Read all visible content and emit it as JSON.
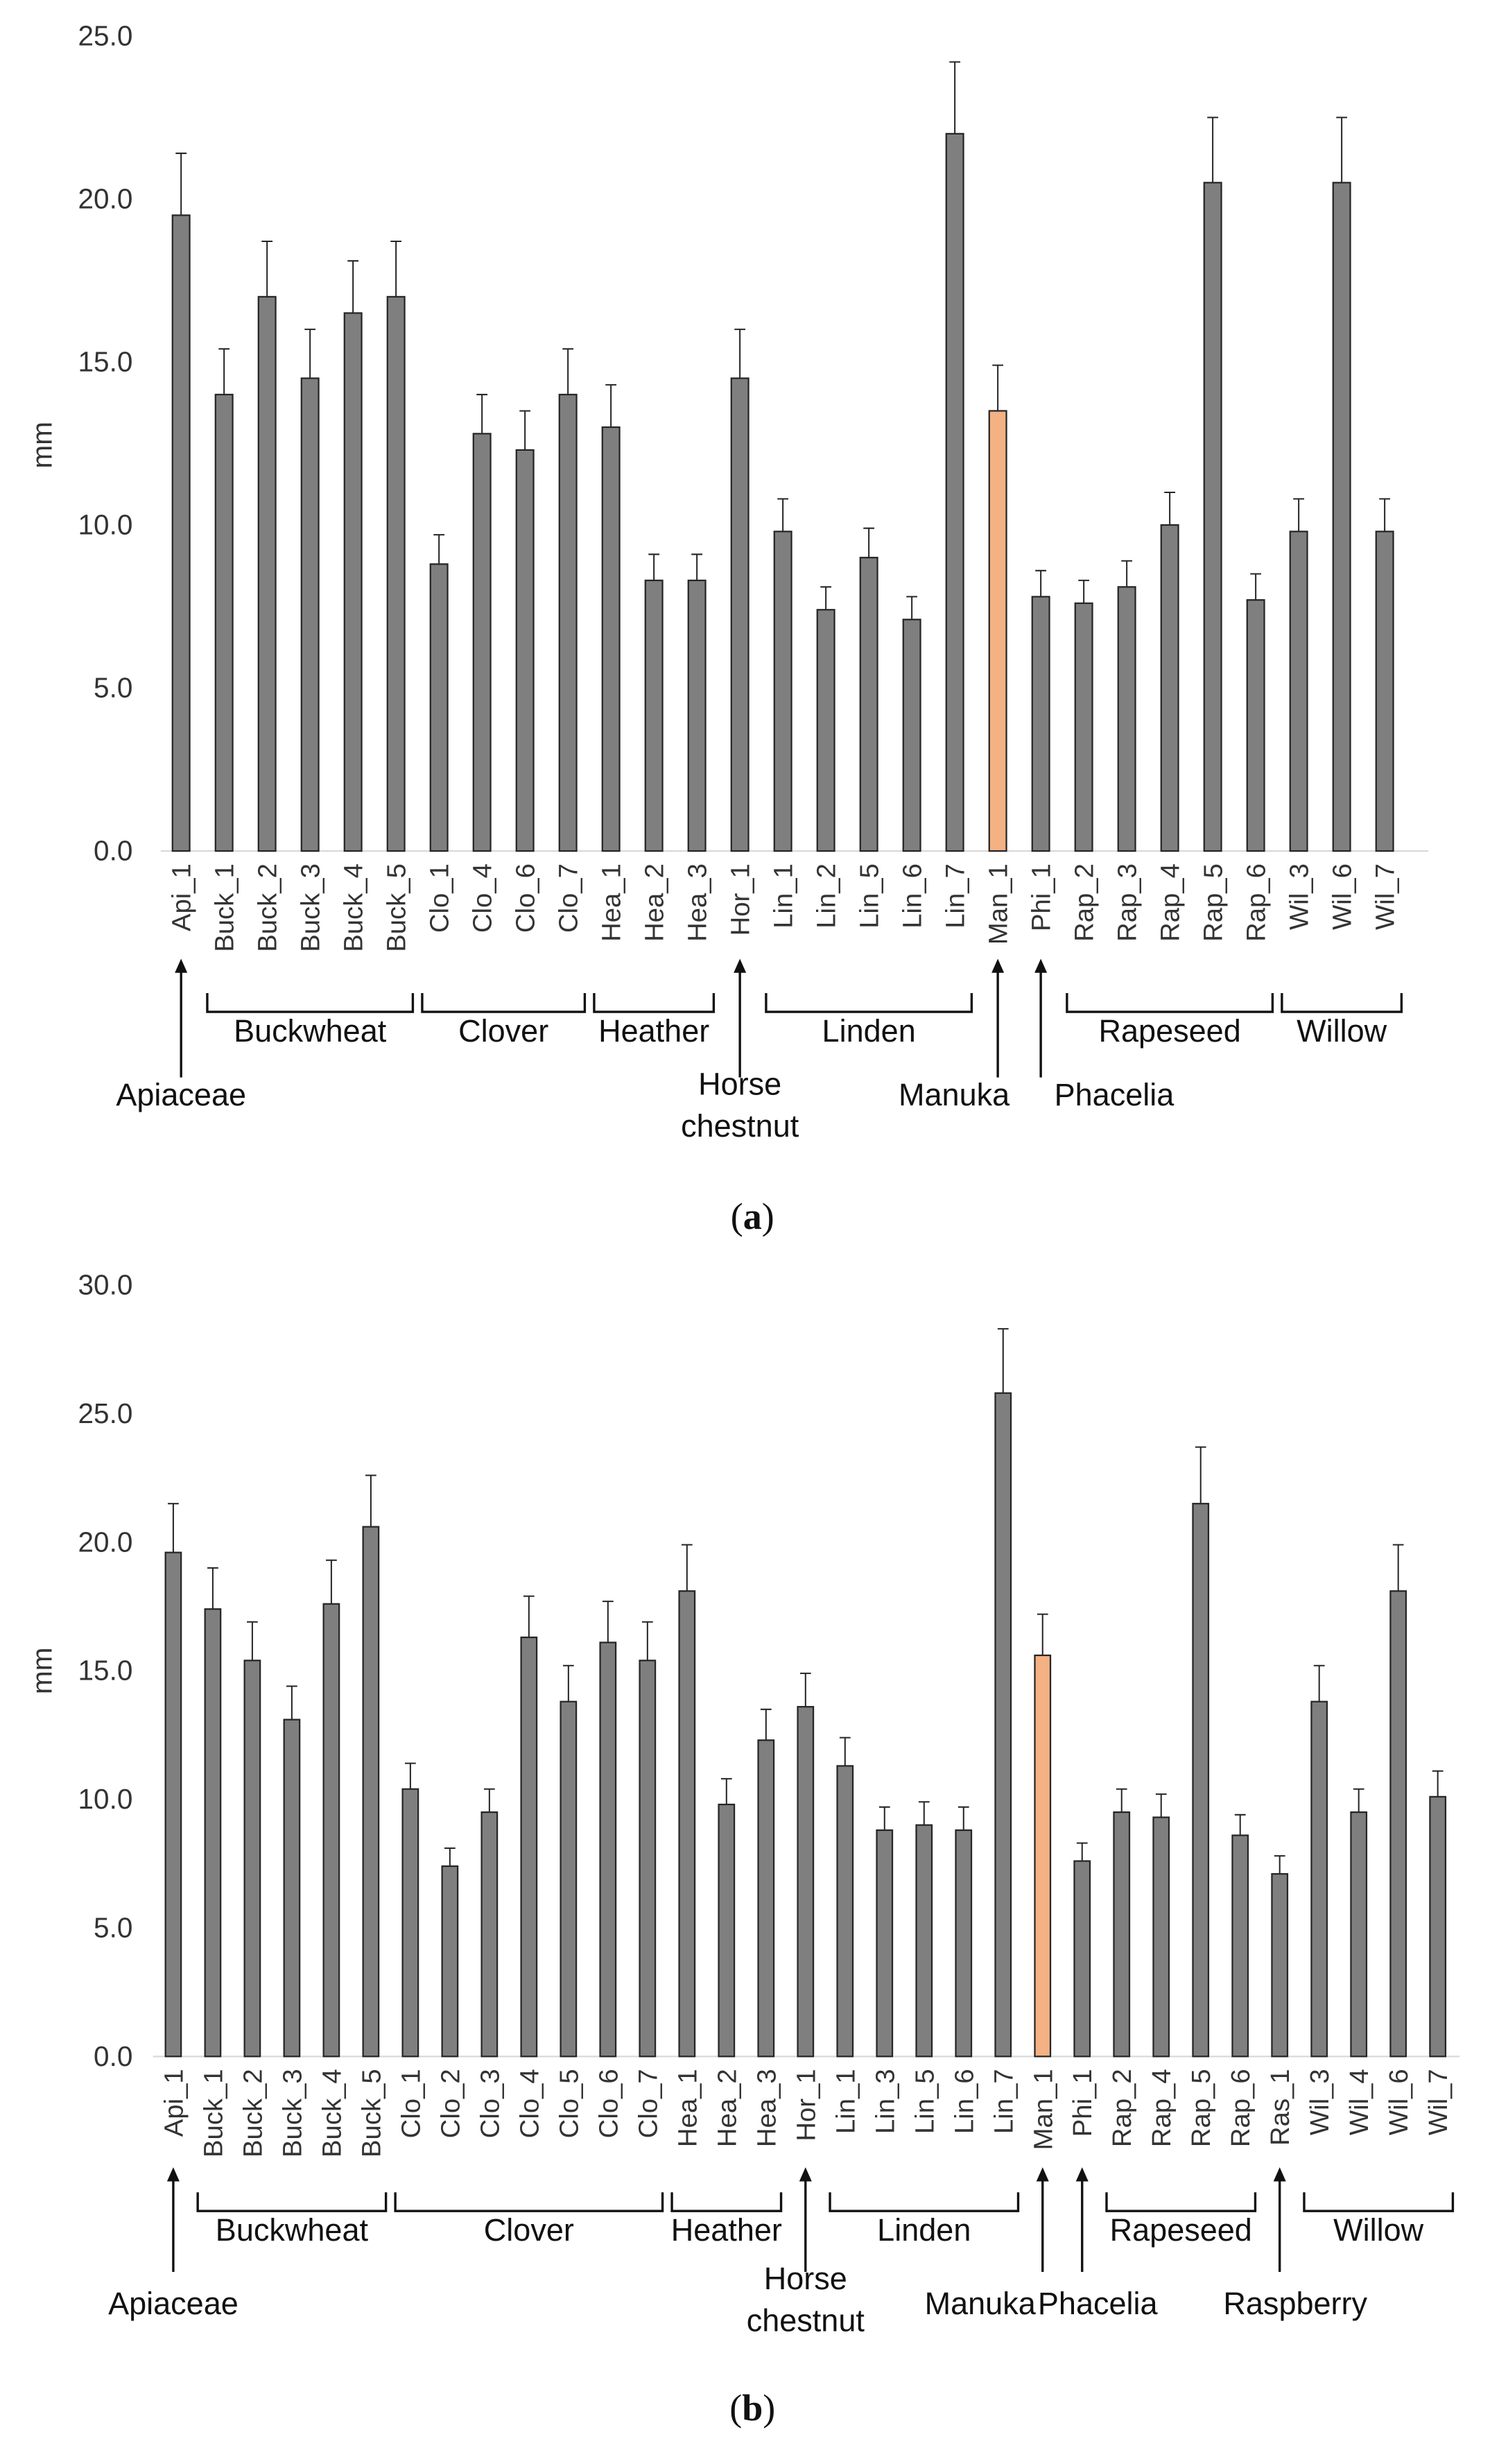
{
  "chart_data": [
    {
      "type": "bar",
      "panel": "(a)",
      "panel_letter": "a",
      "ylabel": "mm",
      "ylim": [
        0,
        25
      ],
      "yticks": [
        "0.0",
        "5.0",
        "10.0",
        "15.0",
        "20.0",
        "25.0"
      ],
      "ytick_values": [
        0,
        5,
        10,
        15,
        20,
        25
      ],
      "categories": [
        "Api_1",
        "Buck_1",
        "Buck_2",
        "Buck_3",
        "Buck_4",
        "Buck_5",
        "Clo_1",
        "Clo_4",
        "Clo_6",
        "Clo_7",
        "Hea_1",
        "Hea_2",
        "Hea_3",
        "Hor_1",
        "Lin_1",
        "Lin_2",
        "Lin_5",
        "Lin_6",
        "Lin_7",
        "Man_1",
        "Phi_1",
        "Rap_2",
        "Rap_3",
        "Rap_4",
        "Rap_5",
        "Rap_6",
        "Wil_3",
        "Wil_6",
        "Wil_7"
      ],
      "values": [
        19.5,
        14.0,
        17.0,
        14.5,
        16.5,
        17.0,
        8.8,
        12.8,
        12.3,
        14.0,
        13.0,
        8.3,
        8.3,
        14.5,
        9.8,
        7.4,
        9.0,
        7.1,
        22.0,
        13.5,
        7.8,
        7.6,
        8.1,
        10.0,
        20.5,
        7.7,
        9.8,
        20.5,
        9.8
      ],
      "errors": [
        1.9,
        1.4,
        1.7,
        1.5,
        1.6,
        1.7,
        0.9,
        1.2,
        1.2,
        1.4,
        1.3,
        0.8,
        0.8,
        1.5,
        1.0,
        0.7,
        0.9,
        0.7,
        2.2,
        1.4,
        0.8,
        0.7,
        0.8,
        1.0,
        2.0,
        0.8,
        1.0,
        2.0,
        1.0
      ],
      "highlight_index": 19,
      "bar_color": "#7f7f7f",
      "highlight_color": "#f4b183",
      "groups": [
        {
          "label": "Apiaceae",
          "type": "arrow",
          "from": 0,
          "to": 0
        },
        {
          "label": "Buckwheat",
          "type": "bracket",
          "from": 1,
          "to": 5
        },
        {
          "label": "Clover",
          "type": "bracket",
          "from": 6,
          "to": 9
        },
        {
          "label": "Heather",
          "type": "bracket",
          "from": 10,
          "to": 12
        },
        {
          "label": "Horse",
          "label2": "chestnut",
          "type": "arrow",
          "from": 13,
          "to": 13
        },
        {
          "label": "Linden",
          "type": "bracket",
          "from": 14,
          "to": 18
        },
        {
          "label": "Manuka",
          "type": "arrow",
          "from": 19,
          "to": 19
        },
        {
          "label": "Phacelia",
          "type": "arrow",
          "from": 20,
          "to": 20
        },
        {
          "label": "Rapeseed",
          "type": "bracket",
          "from": 21,
          "to": 25
        },
        {
          "label": "Willow",
          "type": "bracket",
          "from": 26,
          "to": 28
        }
      ]
    },
    {
      "type": "bar",
      "panel": "(b)",
      "panel_letter": "b",
      "ylabel": "mm",
      "ylim": [
        0,
        30
      ],
      "yticks": [
        "0.0",
        "5.0",
        "10.0",
        "15.0",
        "20.0",
        "25.0",
        "30.0"
      ],
      "ytick_values": [
        0,
        5,
        10,
        15,
        20,
        25,
        30
      ],
      "categories": [
        "Api_1",
        "Buck_1",
        "Buck_2",
        "Buck_3",
        "Buck_4",
        "Buck_5",
        "Clo_1",
        "Clo_2",
        "Clo_3",
        "Clo_4",
        "Clo_5",
        "Clo_6",
        "Clo_7",
        "Hea_1",
        "Hea_2",
        "Hea_3",
        "Hor_1",
        "Lin_1",
        "Lin_3",
        "Lin_5",
        "Lin_6",
        "Lin_7",
        "Man_1",
        "Phi_1",
        "Rap_2",
        "Rap_4",
        "Rap_5",
        "Rap_6",
        "Ras_1",
        "Wil_3",
        "Wil_4",
        "Wil_6",
        "Wil_7"
      ],
      "values": [
        19.6,
        17.4,
        15.4,
        13.1,
        17.6,
        20.6,
        10.4,
        7.4,
        9.5,
        16.3,
        13.8,
        16.1,
        15.4,
        18.1,
        9.8,
        12.3,
        13.6,
        11.3,
        8.8,
        9.0,
        8.8,
        25.8,
        15.6,
        7.6,
        9.5,
        9.3,
        21.5,
        8.6,
        7.1,
        13.8,
        9.5,
        18.1,
        10.1
      ],
      "errors": [
        1.9,
        1.6,
        1.5,
        1.3,
        1.7,
        2.0,
        1.0,
        0.7,
        0.9,
        1.6,
        1.4,
        1.6,
        1.5,
        1.8,
        1.0,
        1.2,
        1.3,
        1.1,
        0.9,
        0.9,
        0.9,
        2.5,
        1.6,
        0.7,
        0.9,
        0.9,
        2.2,
        0.8,
        0.7,
        1.4,
        0.9,
        1.8,
        1.0
      ],
      "highlight_index": 22,
      "bar_color": "#7f7f7f",
      "highlight_color": "#f4b183",
      "groups": [
        {
          "label": "Apiaceae",
          "type": "arrow",
          "from": 0,
          "to": 0
        },
        {
          "label": "Buckwheat",
          "type": "bracket",
          "from": 1,
          "to": 5
        },
        {
          "label": "Clover",
          "type": "bracket",
          "from": 6,
          "to": 12
        },
        {
          "label": "Heather",
          "type": "bracket",
          "from": 13,
          "to": 15
        },
        {
          "label": "Horse",
          "label2": "chestnut",
          "type": "arrow",
          "from": 16,
          "to": 16
        },
        {
          "label": "Linden",
          "type": "bracket",
          "from": 17,
          "to": 21
        },
        {
          "label": "Manuka",
          "type": "arrow",
          "from": 22,
          "to": 22
        },
        {
          "label": "Phacelia",
          "type": "arrow",
          "from": 23,
          "to": 23
        },
        {
          "label": "Rapeseed",
          "type": "bracket",
          "from": 24,
          "to": 27
        },
        {
          "label": "Raspberry",
          "type": "arrow",
          "from": 28,
          "to": 28
        },
        {
          "label": "Willow",
          "type": "bracket",
          "from": 29,
          "to": 32
        }
      ]
    }
  ]
}
